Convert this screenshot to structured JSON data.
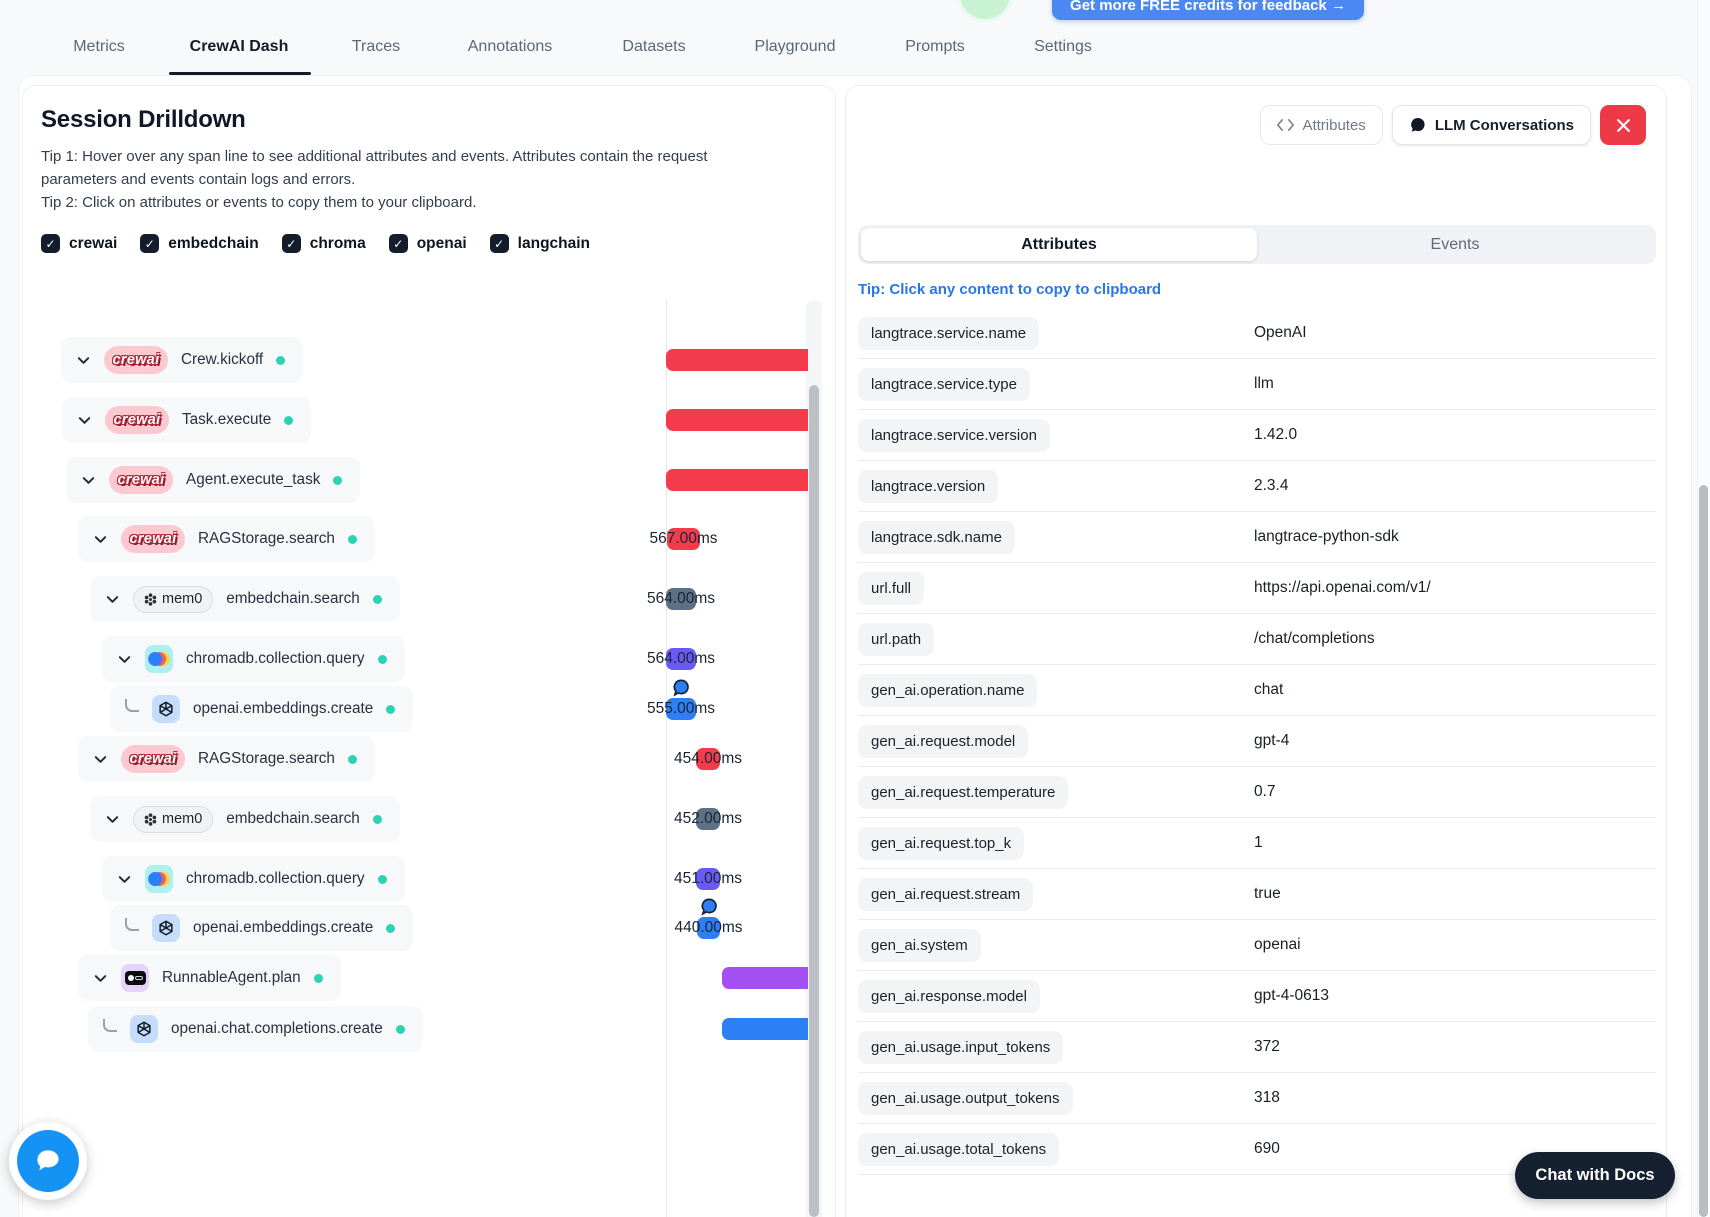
{
  "top_bar": {
    "credits_button": "Get more FREE credits for feedback →"
  },
  "nav": {
    "items": [
      {
        "label": "Metrics",
        "active": false
      },
      {
        "label": "CrewAI Dash",
        "active": true
      },
      {
        "label": "Traces",
        "active": false
      },
      {
        "label": "Annotations",
        "active": false
      },
      {
        "label": "Datasets",
        "active": false
      },
      {
        "label": "Playground",
        "active": false
      },
      {
        "label": "Prompts",
        "active": false
      },
      {
        "label": "Settings",
        "active": false
      }
    ]
  },
  "left_panel": {
    "title": "Session Drilldown",
    "tip1": "Tip 1: Hover over any span line to see additional attributes and events. Attributes contain the request parameters and events contain logs and errors.",
    "tip2": "Tip 2: Click on attributes or events to copy them to your clipboard.",
    "filters": [
      "crewai",
      "embedchain",
      "chroma",
      "openai",
      "langchain"
    ],
    "tree": {
      "rows": [
        {
          "name": "Crew.kickoff",
          "icon": "crewai",
          "bar_color": "red",
          "duration": null,
          "connector": false,
          "bubble": false,
          "cut": true
        },
        {
          "name": "Task.execute",
          "icon": "crewai",
          "bar_color": "red",
          "duration": null,
          "connector": false,
          "bubble": false,
          "cut": true
        },
        {
          "name": "Agent.execute_task",
          "icon": "crewai",
          "bar_color": "red",
          "duration": null,
          "connector": false,
          "bubble": false,
          "cut": true
        },
        {
          "name": "RAGStorage.search",
          "icon": "crewai",
          "bar_color": "red",
          "duration": "567.00ms",
          "connector": false,
          "bubble": false,
          "cut": false
        },
        {
          "name": "embedchain.search",
          "icon": "mem0",
          "bar_color": "slate",
          "duration": "564.00ms",
          "connector": false,
          "bubble": false,
          "cut": false
        },
        {
          "name": "chromadb.collection.query",
          "icon": "chroma",
          "bar_color": "indigo",
          "duration": "564.00ms",
          "connector": false,
          "bubble": false,
          "cut": false
        },
        {
          "name": "openai.embeddings.create",
          "icon": "openai",
          "bar_color": "blue",
          "duration": "555.00ms",
          "connector": true,
          "bubble": true,
          "cut": false
        },
        {
          "name": "RAGStorage.search",
          "icon": "crewai",
          "bar_color": "red",
          "duration": "454.00ms",
          "connector": false,
          "bubble": false,
          "cut": false
        },
        {
          "name": "embedchain.search",
          "icon": "mem0",
          "bar_color": "slate",
          "duration": "452.00ms",
          "connector": false,
          "bubble": false,
          "cut": false
        },
        {
          "name": "chromadb.collection.query",
          "icon": "chroma",
          "bar_color": "indigo",
          "duration": "451.00ms",
          "connector": false,
          "bubble": false,
          "cut": false
        },
        {
          "name": "openai.embeddings.create",
          "icon": "openai",
          "bar_color": "blue",
          "duration": "440.00ms",
          "connector": true,
          "bubble": true,
          "cut": false
        },
        {
          "name": "RunnableAgent.plan",
          "icon": "langchain",
          "bar_color": "purple",
          "duration": null,
          "connector": false,
          "bubble": false,
          "cut": true
        },
        {
          "name": "openai.chat.completions.create",
          "icon": "openai",
          "bar_color": "blue",
          "duration": null,
          "connector": true,
          "bubble": false,
          "cut": true
        }
      ]
    }
  },
  "right_panel": {
    "header_buttons": {
      "attributes": "Attributes",
      "llm_conversations": "LLM Conversations"
    },
    "tabs": [
      {
        "label": "Attributes",
        "active": true
      },
      {
        "label": "Events",
        "active": false
      }
    ],
    "copy_tip": "Tip: Click any content to copy to clipboard",
    "attributes": [
      {
        "key": "langtrace.service.name",
        "value": "OpenAI"
      },
      {
        "key": "langtrace.service.type",
        "value": "llm"
      },
      {
        "key": "langtrace.service.version",
        "value": "1.42.0"
      },
      {
        "key": "langtrace.version",
        "value": "2.3.4"
      },
      {
        "key": "langtrace.sdk.name",
        "value": "langtrace-python-sdk"
      },
      {
        "key": "url.full",
        "value": "https://api.openai.com/v1/"
      },
      {
        "key": "url.path",
        "value": "/chat/completions"
      },
      {
        "key": "gen_ai.operation.name",
        "value": "chat"
      },
      {
        "key": "gen_ai.request.model",
        "value": "gpt-4"
      },
      {
        "key": "gen_ai.request.temperature",
        "value": "0.7"
      },
      {
        "key": "gen_ai.request.top_k",
        "value": "1"
      },
      {
        "key": "gen_ai.request.stream",
        "value": "true"
      },
      {
        "key": "gen_ai.system",
        "value": "openai"
      },
      {
        "key": "gen_ai.response.model",
        "value": "gpt-4-0613"
      },
      {
        "key": "gen_ai.usage.input_tokens",
        "value": "372"
      },
      {
        "key": "gen_ai.usage.output_tokens",
        "value": "318"
      },
      {
        "key": "gen_ai.usage.total_tokens",
        "value": "690"
      }
    ]
  },
  "chat_docs_button": "Chat with Docs",
  "colors": {
    "bar_red": "#f23c4c",
    "bar_slate": "#5d7186",
    "bar_indigo": "#6a5af5",
    "bar_blue": "#2e7ef5",
    "bar_purple": "#a44ff2",
    "status_dot": "#2bd3b5",
    "accent_blue": "#2777e8",
    "close_red": "#ee3a46",
    "credits_blue": "#4c88f2"
  }
}
